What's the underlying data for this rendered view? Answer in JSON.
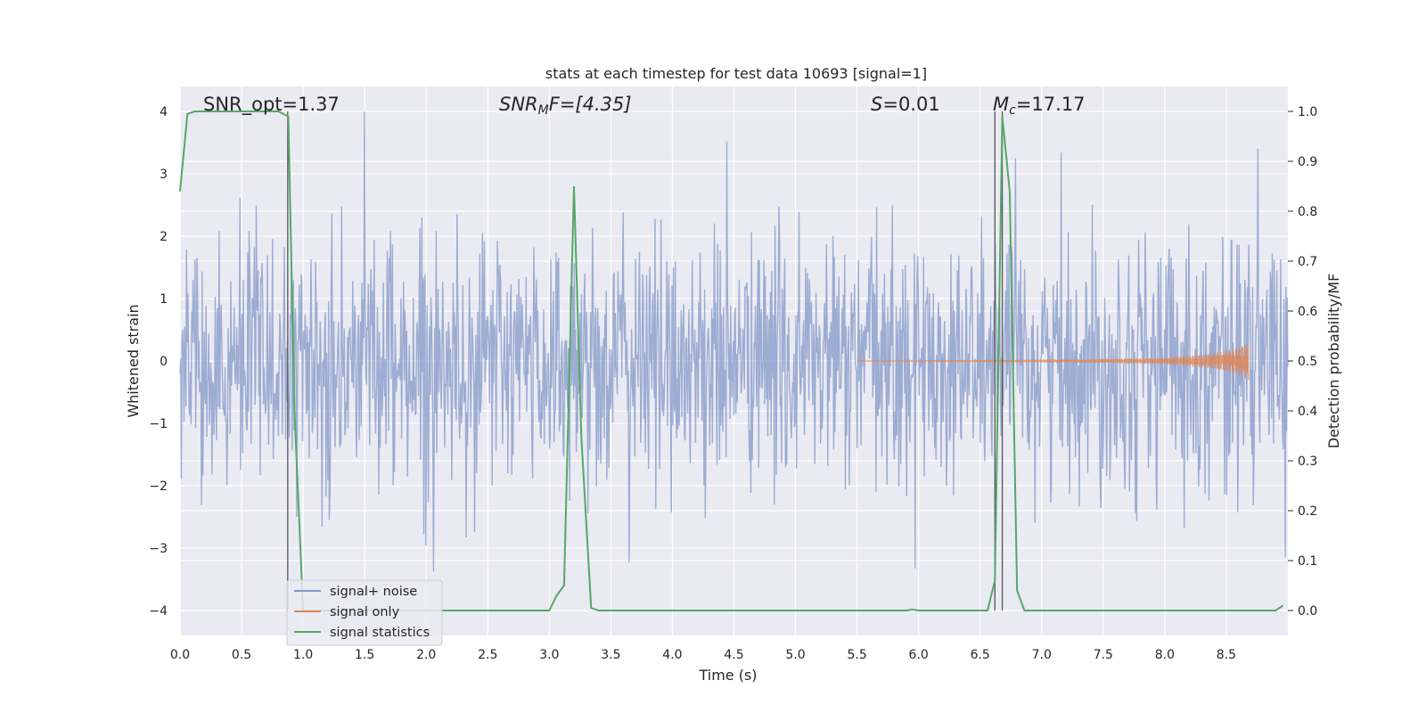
{
  "chart_data": {
    "type": "line",
    "title": "stats at each timestep for test data 10693 [signal=1]",
    "xlabel": "Time (s)",
    "ylabel": "Whitened strain",
    "y2label": "Detection probability/MF",
    "xlim": [
      0.0,
      9.0
    ],
    "ylim": [
      -4.4,
      4.4
    ],
    "y2lim": [
      -0.05,
      1.05
    ],
    "xticks": [
      "0.0",
      "0.5",
      "1.0",
      "1.5",
      "2.0",
      "2.5",
      "3.0",
      "3.5",
      "4.0",
      "4.5",
      "5.0",
      "5.5",
      "6.0",
      "6.5",
      "7.0",
      "7.5",
      "8.0",
      "8.5"
    ],
    "yticks": [
      "4",
      "3",
      "2",
      "1",
      "0",
      "−1",
      "−2",
      "−3",
      "−4"
    ],
    "y2ticks": [
      "1.0",
      "0.9",
      "0.8",
      "0.7",
      "0.6",
      "0.5",
      "0.4",
      "0.3",
      "0.2",
      "0.1",
      "0.0"
    ],
    "grid": true,
    "legend_position": "lower-left",
    "annotations": {
      "snr_opt": "SNR_opt=1.37",
      "snr_mf_label": "SNR",
      "snr_mf_sub": "M",
      "snr_mf_tail": "F=[4.35]",
      "s_label": "S",
      "s_value": "=0.01",
      "mc_label": "M",
      "mc_sub": "c",
      "mc_value": "=17.17"
    },
    "vlines_x": [
      0.875,
      6.62,
      6.68
    ],
    "series": [
      {
        "name": "signal+ noise",
        "color": "#8197c7",
        "noise_std": 1.0,
        "range": [
          -4.0,
          4.0
        ]
      },
      {
        "name": "signal only",
        "color": "#dd8452",
        "amplitude_envelope": {
          "x": [
            5.5,
            7.0,
            8.0,
            8.4,
            8.6,
            8.68
          ],
          "amp": [
            0.0,
            0.01,
            0.05,
            0.12,
            0.22,
            0.3
          ]
        }
      },
      {
        "name": "signal statistics",
        "color": "#55a868",
        "x": [
          0.0,
          0.06,
          0.12,
          0.2,
          0.3,
          0.5,
          0.7,
          0.8,
          0.88,
          0.93,
          1.0,
          1.1,
          1.5,
          2.0,
          2.5,
          3.0,
          3.06,
          3.12,
          3.2,
          3.26,
          3.34,
          3.4,
          4.0,
          4.5,
          5.0,
          5.5,
          5.9,
          5.95,
          6.0,
          6.5,
          6.56,
          6.62,
          6.68,
          6.74,
          6.8,
          6.86,
          7.0,
          7.5,
          8.0,
          8.5,
          8.9,
          8.96
        ],
        "y": [
          0.84,
          0.995,
          1.0,
          1.0,
          1.0,
          1.0,
          1.0,
          1.0,
          0.99,
          0.4,
          0.0,
          0.0,
          0.0,
          0.0,
          0.0,
          0.0,
          0.03,
          0.05,
          0.85,
          0.35,
          0.005,
          0.0,
          0.0,
          0.0,
          0.0,
          0.0,
          0.0,
          0.002,
          0.0,
          0.0,
          0.0,
          0.06,
          0.99,
          0.84,
          0.04,
          0.0,
          0.0,
          0.0,
          0.0,
          0.0,
          0.0,
          0.01
        ]
      }
    ]
  }
}
